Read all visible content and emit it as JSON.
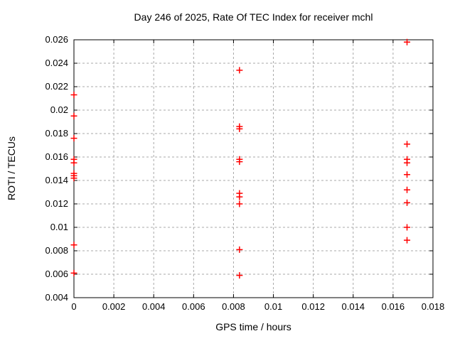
{
  "chart_data": {
    "type": "scatter",
    "title": "Day 246 of 2025, Rate Of TEC Index for receiver mchl",
    "xlabel": "GPS time / hours",
    "ylabel": "ROTI / TECUs",
    "xlim": [
      0,
      0.018
    ],
    "ylim": [
      0.004,
      0.026
    ],
    "xticks": {
      "values": [
        0,
        0.002,
        0.004,
        0.006,
        0.008,
        0.01,
        0.012,
        0.014,
        0.016,
        0.018
      ],
      "labels": [
        "0",
        "0.002",
        "0.004",
        "0.006",
        "0.008",
        "0.01",
        "0.012",
        "0.014",
        "0.016",
        "0.018"
      ]
    },
    "yticks": {
      "values": [
        0.004,
        0.006,
        0.008,
        0.01,
        0.012,
        0.014,
        0.016,
        0.018,
        0.02,
        0.022,
        0.024,
        0.026
      ],
      "labels": [
        "0.004",
        "0.006",
        "0.008",
        "0.01",
        "0.012",
        "0.014",
        "0.016",
        "0.018",
        "0.02",
        "0.022",
        "0.024",
        "0.026"
      ]
    },
    "grid": true,
    "legend_position": "none",
    "marker": {
      "shape": "plus",
      "color": "#ff0000",
      "size": 9
    },
    "series": [
      {
        "name": "ROTI",
        "points": [
          [
            0,
            0.0213
          ],
          [
            0,
            0.0195
          ],
          [
            0,
            0.0176
          ],
          [
            0,
            0.0158
          ],
          [
            0,
            0.0155
          ],
          [
            0,
            0.0146
          ],
          [
            0,
            0.0144
          ],
          [
            0,
            0.0142
          ],
          [
            0,
            0.0085
          ],
          [
            0,
            0.0061
          ],
          [
            0.0083,
            0.0234
          ],
          [
            0.0083,
            0.0186
          ],
          [
            0.0083,
            0.0184
          ],
          [
            0.0083,
            0.0158
          ],
          [
            0.0083,
            0.0156
          ],
          [
            0.0083,
            0.0129
          ],
          [
            0.0083,
            0.0126
          ],
          [
            0.0083,
            0.012
          ],
          [
            0.0083,
            0.0081
          ],
          [
            0.0083,
            0.0059
          ],
          [
            0.0167,
            0.0258
          ],
          [
            0.0167,
            0.0171
          ],
          [
            0.0167,
            0.0158
          ],
          [
            0.0167,
            0.0155
          ],
          [
            0.0167,
            0.0145
          ],
          [
            0.0167,
            0.0132
          ],
          [
            0.0167,
            0.0121
          ],
          [
            0.0167,
            0.01
          ],
          [
            0.0167,
            0.0089
          ]
        ]
      }
    ]
  },
  "colors": {
    "background": "#ffffff",
    "axis": "#000000",
    "grid": "#a8a8a8",
    "marker": "#ff0000",
    "text": "#000000"
  }
}
